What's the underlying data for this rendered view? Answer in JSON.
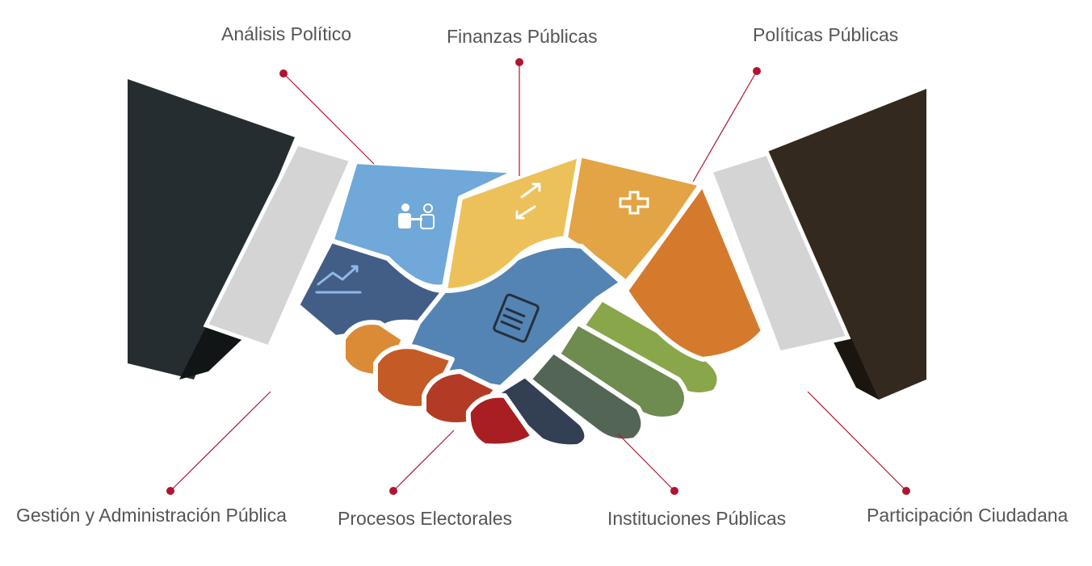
{
  "labels": {
    "analisis_politico": "Análisis Político",
    "finanzas_publicas": "Finanzas Públicas",
    "politicas_publicas": "Políticas Públicas",
    "gestion_administracion": "Gestión y Administración Pública",
    "procesos_electorales": "Procesos Electorales",
    "instituciones_publicas": "Instituciones Públicas",
    "participacion_ciudadana": "Participación Ciudadana"
  },
  "colors": {
    "leader_line": "#b01530",
    "label_text": "#555555",
    "left_sleeve": "#262d30",
    "right_sleeve": "#33291f",
    "cuff": "#d4d4d4",
    "outline": "#ffffff"
  },
  "icons": [
    "people-meeting-icon",
    "exchange-arrows-icon",
    "medical-cross-icon",
    "trend-chart-icon",
    "document-tablet-icon"
  ]
}
